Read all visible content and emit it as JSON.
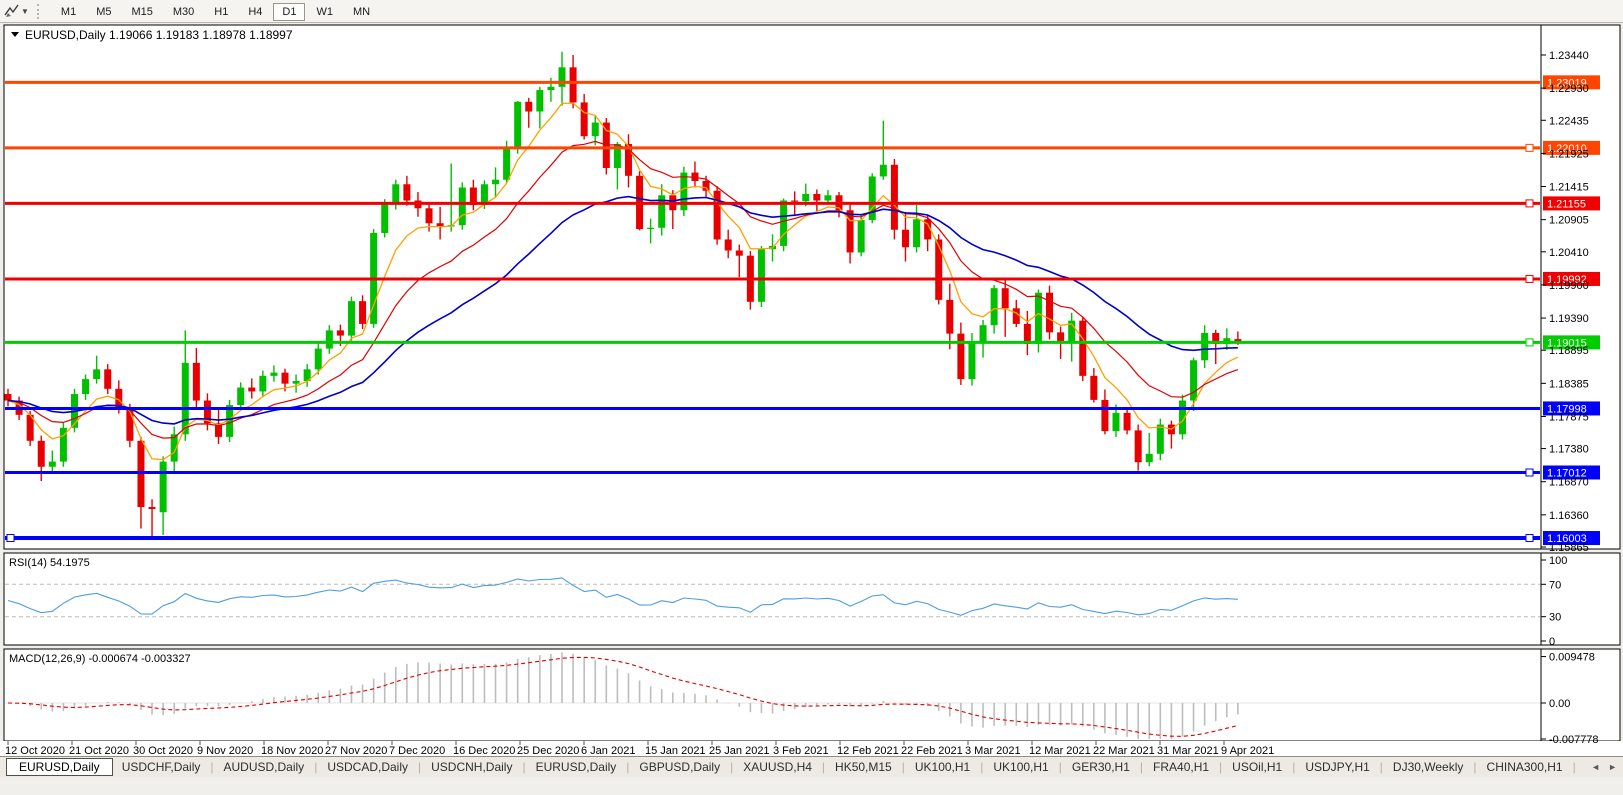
{
  "toolbar": {
    "chart_tool_icon": "chart-cursor-icon",
    "dropdown_icon": "chevron-down-icon",
    "timeframes": [
      "M1",
      "M5",
      "M15",
      "M30",
      "H1",
      "H4",
      "D1",
      "W1",
      "MN"
    ],
    "active_timeframe": "D1"
  },
  "chart_window": {
    "title_symbol": "EURUSD,Daily",
    "ohlc": "1.19066 1.19183 1.18978 1.18997"
  },
  "chart_data": {
    "type": "candlestick",
    "symbol": "EURUSD",
    "period": "Daily",
    "title": "EURUSD,Daily",
    "ohlc_display": "1.19066 1.19183 1.18978 1.18997",
    "candle_up_color": "#00C000",
    "candle_down_color": "#E80000",
    "price_axis_ticks": [
      "1.23440",
      "1.22930",
      "1.22435",
      "1.21925",
      "1.21415",
      "1.20905",
      "1.20410",
      "1.19900",
      "1.19390",
      "1.18895",
      "1.18385",
      "1.17875",
      "1.17380",
      "1.16870",
      "1.16360",
      "1.15865"
    ],
    "hlines": [
      {
        "price": 1.23019,
        "label": "1.23019",
        "color": "#FF4500",
        "width": 3,
        "handle": false,
        "left_handle": false
      },
      {
        "price": 1.2201,
        "label": "1.22010",
        "color": "#FF4500",
        "width": 3,
        "handle": true,
        "left_handle": false
      },
      {
        "price": 1.21155,
        "label": "1.21155",
        "color": "#F00000",
        "width": 3,
        "handle": true,
        "left_handle": false
      },
      {
        "price": 1.19992,
        "label": "1.19992",
        "color": "#F00000",
        "width": 3,
        "handle": true,
        "left_handle": false
      },
      {
        "price": 1.19015,
        "label": "1.19015",
        "color": "#00CC00",
        "width": 3,
        "handle": true,
        "left_handle": false
      },
      {
        "price": 1.17998,
        "label": "1.17998",
        "color": "#0000FF",
        "width": 3,
        "handle": false,
        "left_handle": false
      },
      {
        "price": 1.17012,
        "label": "1.17012",
        "color": "#0000FF",
        "width": 3,
        "handle": true,
        "left_handle": false
      },
      {
        "price": 1.16003,
        "label": "1.16003",
        "color": "#0000FF",
        "width": 4,
        "handle": true,
        "left_handle": true
      }
    ],
    "moving_averages": [
      {
        "name": "ma-fast",
        "period": 6,
        "color": "#FFA000",
        "stroke": 1.3
      },
      {
        "name": "ma-mid",
        "period": 14,
        "color": "#E00000",
        "stroke": 1.2
      },
      {
        "name": "ma-slow",
        "period": 30,
        "color": "#0000C8",
        "stroke": 1.6
      }
    ],
    "x_labels": [
      "12 Oct 2020",
      "21 Oct 2020",
      "30 Oct 2020",
      "9 Nov 2020",
      "18 Nov 2020",
      "27 Nov 2020",
      "7 Dec 2020",
      "16 Dec 2020",
      "25 Dec 2020",
      "6 Jan 2021",
      "15 Jan 2021",
      "25 Jan 2021",
      "3 Feb 2021",
      "12 Feb 2021",
      "22 Feb 2021",
      "3 Mar 2021",
      "12 Mar 2021",
      "22 Mar 2021",
      "31 Mar 2021",
      "9 Apr 2021"
    ],
    "candles": [
      [
        1.1822,
        1.183,
        1.1803,
        1.1812
      ],
      [
        1.1812,
        1.1818,
        1.1782,
        1.179
      ],
      [
        1.179,
        1.1796,
        1.1742,
        1.175
      ],
      [
        1.175,
        1.1758,
        1.1688,
        1.171
      ],
      [
        1.171,
        1.1735,
        1.17,
        1.1718
      ],
      [
        1.1718,
        1.1778,
        1.171,
        1.177
      ],
      [
        1.177,
        1.183,
        1.1763,
        1.1822
      ],
      [
        1.1822,
        1.1852,
        1.1813,
        1.1845
      ],
      [
        1.1845,
        1.1881,
        1.1838,
        1.186
      ],
      [
        1.186,
        1.1868,
        1.1822,
        1.183
      ],
      [
        1.183,
        1.1843,
        1.1792,
        1.18
      ],
      [
        1.18,
        1.1807,
        1.174,
        1.175
      ],
      [
        1.175,
        1.1756,
        1.1615,
        1.1648
      ],
      [
        1.1648,
        1.166,
        1.1603,
        1.1645
      ],
      [
        1.164,
        1.1726,
        1.1605,
        1.1718
      ],
      [
        1.1718,
        1.1772,
        1.1702,
        1.176
      ],
      [
        1.176,
        1.192,
        1.175,
        1.187
      ],
      [
        1.187,
        1.1893,
        1.18,
        1.1812
      ],
      [
        1.1812,
        1.1823,
        1.1766,
        1.1777
      ],
      [
        1.1777,
        1.18,
        1.1745,
        1.1756
      ],
      [
        1.1756,
        1.1813,
        1.1748,
        1.1805
      ],
      [
        1.1805,
        1.184,
        1.1797,
        1.1832
      ],
      [
        1.1832,
        1.1846,
        1.1815,
        1.1826
      ],
      [
        1.1826,
        1.1858,
        1.1818,
        1.185
      ],
      [
        1.185,
        1.1866,
        1.1841,
        1.1855
      ],
      [
        1.1855,
        1.1861,
        1.1826,
        1.1838
      ],
      [
        1.1838,
        1.1852,
        1.1824,
        1.1842
      ],
      [
        1.1842,
        1.1868,
        1.1833,
        1.186
      ],
      [
        1.186,
        1.19,
        1.1852,
        1.1892
      ],
      [
        1.1892,
        1.1928,
        1.1884,
        1.192
      ],
      [
        1.192,
        1.1929,
        1.1896,
        1.1912
      ],
      [
        1.1912,
        1.1972,
        1.1904,
        1.1965
      ],
      [
        1.1965,
        1.1974,
        1.1922,
        1.193
      ],
      [
        1.193,
        1.2076,
        1.1924,
        1.207
      ],
      [
        1.207,
        1.2122,
        1.2063,
        1.2115
      ],
      [
        1.2115,
        1.2152,
        1.2106,
        1.2145
      ],
      [
        1.2145,
        1.2158,
        1.2112,
        1.212
      ],
      [
        1.212,
        1.2133,
        1.2095,
        1.2108
      ],
      [
        1.2108,
        1.2116,
        1.2072,
        1.2085
      ],
      [
        1.2085,
        1.211,
        1.206,
        1.208
      ],
      [
        1.208,
        1.2177,
        1.2072,
        1.2082
      ],
      [
        1.2082,
        1.2148,
        1.2075,
        1.214
      ],
      [
        1.214,
        1.2152,
        1.2105,
        1.2113
      ],
      [
        1.2113,
        1.2151,
        1.2107,
        1.2145
      ],
      [
        1.2145,
        1.2171,
        1.2125,
        1.2152
      ],
      [
        1.2152,
        1.2212,
        1.2146,
        1.22
      ],
      [
        1.22,
        1.2273,
        1.2192,
        1.2272
      ],
      [
        1.2272,
        1.2278,
        1.2232,
        1.2257
      ],
      [
        1.2257,
        1.2295,
        1.2231,
        1.229
      ],
      [
        1.229,
        1.2309,
        1.2272,
        1.2295
      ],
      [
        1.2295,
        1.2349,
        1.2266,
        1.2325
      ],
      [
        1.2325,
        1.2344,
        1.2262,
        1.2271
      ],
      [
        1.2271,
        1.2284,
        1.2214,
        1.2219
      ],
      [
        1.2219,
        1.225,
        1.2205,
        1.224
      ],
      [
        1.224,
        1.2247,
        1.216,
        1.217
      ],
      [
        1.217,
        1.221,
        1.2137,
        1.2207
      ],
      [
        1.2207,
        1.2222,
        1.214,
        1.2158
      ],
      [
        1.2158,
        1.2165,
        1.2074,
        1.2076
      ],
      [
        1.2076,
        1.2092,
        1.2054,
        1.2078
      ],
      [
        1.2078,
        1.2145,
        1.2066,
        1.2128
      ],
      [
        1.2128,
        1.2136,
        1.2076,
        1.2105
      ],
      [
        1.2105,
        1.2172,
        1.2096,
        1.2163
      ],
      [
        1.2163,
        1.218,
        1.214,
        1.215
      ],
      [
        1.215,
        1.2158,
        1.2125,
        1.2135
      ],
      [
        1.2135,
        1.2142,
        1.2052,
        1.206
      ],
      [
        1.206,
        1.2075,
        1.2031,
        1.2043
      ],
      [
        1.2043,
        1.2052,
        1.2002,
        1.2035
      ],
      [
        1.2035,
        1.2042,
        1.1952,
        1.1964
      ],
      [
        1.1964,
        1.205,
        1.1956,
        1.2045
      ],
      [
        1.2045,
        1.2068,
        1.2026,
        1.205
      ],
      [
        1.205,
        1.2123,
        1.2042,
        1.212
      ],
      [
        1.212,
        1.2134,
        1.2096,
        1.2119
      ],
      [
        1.2119,
        1.2146,
        1.2111,
        1.213
      ],
      [
        1.213,
        1.2137,
        1.2104,
        1.212
      ],
      [
        1.212,
        1.2136,
        1.2116,
        1.2128
      ],
      [
        1.2128,
        1.2133,
        1.2094,
        1.2105
      ],
      [
        1.2105,
        1.2115,
        1.2023,
        1.204
      ],
      [
        1.204,
        1.2098,
        1.2034,
        1.209
      ],
      [
        1.209,
        1.2162,
        1.2085,
        1.2157
      ],
      [
        1.2157,
        1.2243,
        1.2152,
        1.2175
      ],
      [
        1.2175,
        1.2184,
        1.206,
        1.2075
      ],
      [
        1.2075,
        1.2102,
        1.2026,
        1.2048
      ],
      [
        1.2048,
        1.2113,
        1.204,
        1.2091
      ],
      [
        1.2091,
        1.2098,
        1.2042,
        1.206
      ],
      [
        1.206,
        1.2068,
        1.196,
        1.1967
      ],
      [
        1.1967,
        1.1992,
        1.1891,
        1.1915
      ],
      [
        1.1915,
        1.1932,
        1.1836,
        1.1845
      ],
      [
        1.1845,
        1.1916,
        1.1835,
        1.19
      ],
      [
        1.19,
        1.1936,
        1.1878,
        1.1928
      ],
      [
        1.1928,
        1.199,
        1.1915,
        1.1985
      ],
      [
        1.1985,
        1.1997,
        1.191,
        1.1954
      ],
      [
        1.1954,
        1.1967,
        1.1925,
        1.193
      ],
      [
        1.193,
        1.195,
        1.1882,
        1.1899
      ],
      [
        1.1899,
        1.1983,
        1.1886,
        1.1978
      ],
      [
        1.1978,
        1.1989,
        1.1906,
        1.1917
      ],
      [
        1.1917,
        1.1926,
        1.1876,
        1.1903
      ],
      [
        1.1903,
        1.1947,
        1.1872,
        1.1935
      ],
      [
        1.1935,
        1.1941,
        1.1842,
        1.185
      ],
      [
        1.185,
        1.1862,
        1.1809,
        1.1813
      ],
      [
        1.1813,
        1.1829,
        1.176,
        1.1765
      ],
      [
        1.1765,
        1.1806,
        1.1756,
        1.1793
      ],
      [
        1.1793,
        1.1798,
        1.176,
        1.1766
      ],
      [
        1.1766,
        1.1775,
        1.1704,
        1.1717
      ],
      [
        1.1717,
        1.1762,
        1.1711,
        1.173
      ],
      [
        1.173,
        1.1784,
        1.172,
        1.1775
      ],
      [
        1.1775,
        1.1781,
        1.1738,
        1.176
      ],
      [
        1.176,
        1.1821,
        1.1752,
        1.1812
      ],
      [
        1.1812,
        1.1878,
        1.1796,
        1.1874
      ],
      [
        1.1874,
        1.1928,
        1.1862,
        1.1916
      ],
      [
        1.1916,
        1.1921,
        1.1868,
        1.1899
      ],
      [
        1.1899,
        1.1923,
        1.189,
        1.1908
      ],
      [
        1.19066,
        1.19183,
        1.18978,
        1.18997
      ]
    ]
  },
  "rsi": {
    "label": "RSI(14)",
    "value": "54.1975",
    "period": 14,
    "axis_labels": [
      "100",
      "70",
      "30",
      "0"
    ],
    "axis_values": [
      100,
      70,
      30,
      0
    ],
    "level_lines": [
      70,
      30
    ],
    "line_color": "#4D9EE0",
    "level_color": "#BBBBBB"
  },
  "macd": {
    "label": "MACD(12,26,9)",
    "values": "-0.000674 -0.003327",
    "fast": 12,
    "slow": 26,
    "signal": 9,
    "axis_labels": [
      "0.009478",
      "0.00",
      "-0.007778"
    ],
    "axis_values": [
      0.009478,
      0.0,
      -0.007778
    ],
    "bar_color": "#BDBDBD",
    "signal_color": "#E00000"
  },
  "tabs": {
    "items": [
      "EURUSD,Daily",
      "USDCHF,Daily",
      "AUDUSD,Daily",
      "USDCAD,Daily",
      "USDCNH,Daily",
      "EURUSD,Daily",
      "GBPUSD,Daily",
      "XAUUSD,H4",
      "HK50,M15",
      "UK100,H1",
      "UK100,H1",
      "GER30,H1",
      "FRA40,H1",
      "USOil,H1",
      "USDJPY,H1",
      "DJ30,Weekly",
      "CHINA300,H1",
      "U"
    ],
    "active_index": 0,
    "scroll_left_icon": "◄",
    "scroll_right_icon": "►"
  }
}
